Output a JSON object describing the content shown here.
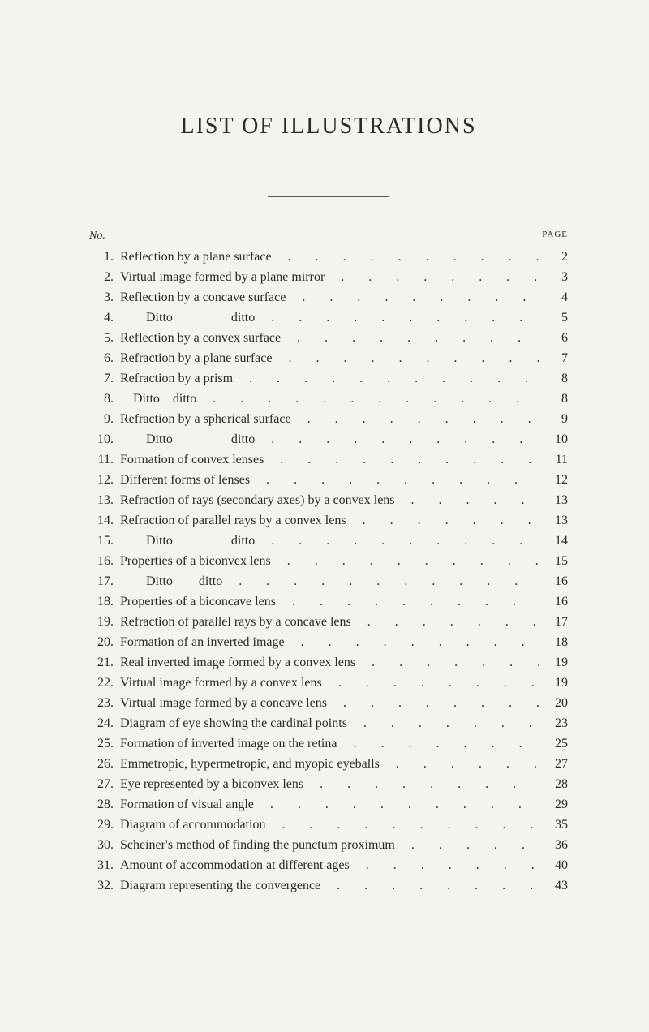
{
  "title": "LIST OF ILLUSTRATIONS",
  "header": {
    "no_label": "No.",
    "page_label": "PAGE"
  },
  "colors": {
    "background": "#f5f3ed",
    "text": "#2a2a2a",
    "rule": "#5a5a5a"
  },
  "typography": {
    "title_fontsize": 28,
    "title_letter_spacing": 2,
    "body_fontsize": 16,
    "line_height": 1.5,
    "font_family": "Times New Roman"
  },
  "leader_char": ".",
  "entries": [
    {
      "num": "1.",
      "text": "Reflection by a plane surface",
      "page": "2"
    },
    {
      "num": "2.",
      "text": "Virtual image formed by a plane mirror",
      "page": "3"
    },
    {
      "num": "3.",
      "text": "Reflection by a concave surface",
      "page": "4"
    },
    {
      "num": "4.",
      "text": "        Ditto                  ditto",
      "page": "5"
    },
    {
      "num": "5.",
      "text": "Reflection by a convex surface",
      "page": "6"
    },
    {
      "num": "6.",
      "text": "Refraction by a plane surface",
      "page": "7"
    },
    {
      "num": "7.",
      "text": "Refraction by a prism",
      "page": "8"
    },
    {
      "num": "8.",
      "text": "    Ditto    ditto",
      "page": "8"
    },
    {
      "num": "9.",
      "text": "Refraction by a spherical surface",
      "page": "9"
    },
    {
      "num": "10.",
      "text": "        Ditto                  ditto",
      "page": "10"
    },
    {
      "num": "11.",
      "text": "Formation of convex lenses",
      "page": "11"
    },
    {
      "num": "12.",
      "text": "Different forms of lenses",
      "page": "12"
    },
    {
      "num": "13.",
      "text": "Refraction of rays (secondary axes) by a convex lens",
      "page": "13"
    },
    {
      "num": "14.",
      "text": "Refraction of parallel rays by a convex lens",
      "page": "13"
    },
    {
      "num": "15.",
      "text": "        Ditto                  ditto",
      "page": "14"
    },
    {
      "num": "16.",
      "text": "Properties of a biconvex lens",
      "page": "15"
    },
    {
      "num": "17.",
      "text": "        Ditto        ditto",
      "page": "16"
    },
    {
      "num": "18.",
      "text": "Properties of a biconcave lens",
      "page": "16"
    },
    {
      "num": "19.",
      "text": "Refraction of parallel rays by a concave lens",
      "page": "17"
    },
    {
      "num": "20.",
      "text": "Formation of an inverted image",
      "page": "18"
    },
    {
      "num": "21.",
      "text": "Real inverted image formed by a convex lens",
      "page": "19"
    },
    {
      "num": "22.",
      "text": "Virtual image formed by a convex lens",
      "page": "19"
    },
    {
      "num": "23.",
      "text": "Virtual image formed by a concave lens",
      "page": "20"
    },
    {
      "num": "24.",
      "text": "Diagram of eye showing the cardinal points",
      "page": "23"
    },
    {
      "num": "25.",
      "text": "Formation of inverted image on the retina",
      "page": "25"
    },
    {
      "num": "26.",
      "text": "Emmetropic, hypermetropic, and myopic eyeballs",
      "page": "27"
    },
    {
      "num": "27.",
      "text": "Eye represented by a biconvex lens",
      "page": "28"
    },
    {
      "num": "28.",
      "text": "Formation of visual angle",
      "page": "29"
    },
    {
      "num": "29.",
      "text": "Diagram of accommodation",
      "page": "35"
    },
    {
      "num": "30.",
      "text": "Scheiner's method of finding the punctum proximum",
      "page": "36"
    },
    {
      "num": "31.",
      "text": "Amount of accommodation at different ages",
      "page": "40"
    },
    {
      "num": "32.",
      "text": "Diagram representing the convergence",
      "page": "43"
    }
  ]
}
